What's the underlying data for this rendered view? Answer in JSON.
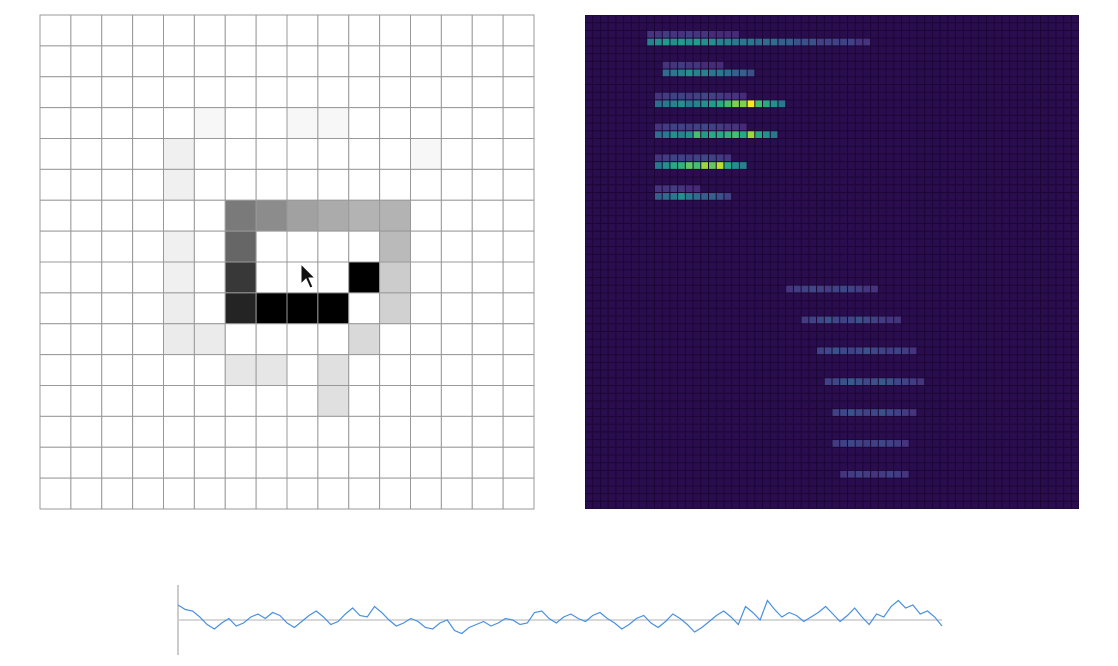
{
  "drawing": [
    [
      0,
      0,
      0,
      0,
      0,
      0,
      0,
      0,
      0,
      0,
      0,
      0,
      0,
      0,
      0,
      0
    ],
    [
      0,
      0,
      0,
      0,
      0,
      0,
      0,
      0,
      0,
      0,
      0,
      0,
      0,
      0,
      0,
      0
    ],
    [
      0,
      0,
      0,
      0,
      0,
      0,
      0,
      0,
      0,
      0,
      0,
      0,
      0,
      0,
      0,
      0
    ],
    [
      0,
      0,
      0,
      0,
      0,
      0.03,
      0,
      0,
      0.03,
      0.03,
      0,
      0,
      0,
      0,
      0,
      0
    ],
    [
      0,
      0,
      0,
      0,
      0.06,
      0,
      0,
      0,
      0,
      0,
      0,
      0,
      0.03,
      0,
      0,
      0
    ],
    [
      0,
      0,
      0,
      0,
      0.06,
      0,
      0,
      0,
      0,
      0,
      0,
      0,
      0,
      0,
      0,
      0
    ],
    [
      0,
      0,
      0,
      0,
      0,
      0,
      0.52,
      0.45,
      0.37,
      0.33,
      0.3,
      0.3,
      0,
      0,
      0,
      0
    ],
    [
      0,
      0,
      0,
      0,
      0.06,
      0,
      0.6,
      0,
      0,
      0,
      0,
      0.27,
      0,
      0,
      0,
      0
    ],
    [
      0,
      0,
      0,
      0,
      0.06,
      0,
      0.78,
      0,
      0,
      0,
      1,
      0.2,
      0,
      0,
      0,
      0
    ],
    [
      0,
      0,
      0,
      0,
      0.07,
      0,
      0.86,
      1,
      1,
      1,
      0,
      0.18,
      0,
      0,
      0,
      0
    ],
    [
      0,
      0,
      0,
      0,
      0.08,
      0.08,
      0,
      0,
      0,
      0,
      0.15,
      0,
      0,
      0,
      0,
      0
    ],
    [
      0,
      0,
      0,
      0,
      0,
      0,
      0.1,
      0.1,
      0,
      0.12,
      0,
      0,
      0,
      0,
      0,
      0
    ],
    [
      0,
      0,
      0,
      0,
      0,
      0,
      0,
      0,
      0,
      0.12,
      0,
      0,
      0,
      0,
      0,
      0
    ],
    [
      0,
      0,
      0,
      0,
      0,
      0,
      0,
      0,
      0,
      0,
      0,
      0,
      0,
      0,
      0,
      0
    ],
    [
      0,
      0,
      0,
      0,
      0,
      0,
      0,
      0,
      0,
      0,
      0,
      0,
      0,
      0,
      0,
      0
    ],
    [
      0,
      0,
      0,
      0,
      0,
      0,
      0,
      0,
      0,
      0,
      0,
      0,
      0,
      0,
      0,
      0
    ]
  ],
  "heatmap": [
    {
      "row": 2,
      "start": 8,
      "values": [
        0.15,
        0.15,
        0.18,
        0.15,
        0.15,
        0.18,
        0.15,
        0.15,
        0.12,
        0.12,
        0.12,
        0.12
      ]
    },
    {
      "row": 3,
      "start": 8,
      "values": [
        0.45,
        0.5,
        0.55,
        0.5,
        0.55,
        0.5,
        0.55,
        0.5,
        0.5,
        0.45,
        0.45,
        0.4,
        0.4,
        0.4,
        0.35,
        0.35,
        0.35,
        0.3,
        0.3,
        0.25,
        0.25,
        0.25,
        0.2,
        0.2,
        0.2,
        0.2,
        0.2,
        0.15,
        0.15
      ]
    },
    {
      "row": 6,
      "start": 10,
      "values": [
        0.15,
        0.15,
        0.18,
        0.15,
        0.15,
        0.12,
        0.12,
        0.12
      ]
    },
    {
      "row": 7,
      "start": 10,
      "values": [
        0.35,
        0.4,
        0.45,
        0.5,
        0.45,
        0.45,
        0.4,
        0.4,
        0.35,
        0.3,
        0.3,
        0.25
      ]
    },
    {
      "row": 10,
      "start": 9,
      "values": [
        0.15,
        0.18,
        0.2,
        0.2,
        0.18,
        0.2,
        0.22,
        0.2,
        0.18,
        0.15,
        0.15,
        0.12
      ]
    },
    {
      "row": 11,
      "start": 9,
      "values": [
        0.35,
        0.4,
        0.45,
        0.5,
        0.4,
        0.45,
        0.5,
        0.55,
        0.6,
        0.7,
        0.8,
        0.8,
        1,
        0.7,
        0.6,
        0.5,
        0.4
      ]
    },
    {
      "row": 14,
      "start": 9,
      "values": [
        0.15,
        0.18,
        0.2,
        0.2,
        0.18,
        0.2,
        0.22,
        0.2,
        0.18,
        0.15,
        0.15,
        0.12
      ]
    },
    {
      "row": 15,
      "start": 9,
      "values": [
        0.35,
        0.4,
        0.5,
        0.45,
        0.5,
        0.7,
        0.55,
        0.6,
        0.6,
        0.65,
        0.7,
        0.6,
        0.85,
        0.6,
        0.5,
        0.4
      ]
    },
    {
      "row": 18,
      "start": 9,
      "values": [
        0.15,
        0.18,
        0.2,
        0.2,
        0.18,
        0.2,
        0.22,
        0.2,
        0.18,
        0.15
      ]
    },
    {
      "row": 19,
      "start": 9,
      "values": [
        0.4,
        0.5,
        0.6,
        0.65,
        0.75,
        0.7,
        0.85,
        0.75,
        0.9,
        0.6,
        0.5,
        0.45
      ]
    },
    {
      "row": 22,
      "start": 9,
      "values": [
        0.15,
        0.15,
        0.18,
        0.15,
        0.12,
        0.12
      ]
    },
    {
      "row": 23,
      "start": 9,
      "values": [
        0.3,
        0.35,
        0.4,
        0.5,
        0.4,
        0.35,
        0.3,
        0.3,
        0.25,
        0.2
      ]
    },
    {
      "row": 35,
      "start": 26,
      "values": [
        0.15,
        0.18,
        0.2,
        0.22,
        0.2,
        0.18,
        0.2,
        0.22,
        0.2,
        0.18,
        0.15,
        0.15
      ]
    },
    {
      "row": 39,
      "start": 28,
      "values": [
        0.18,
        0.2,
        0.22,
        0.25,
        0.22,
        0.2,
        0.22,
        0.25,
        0.22,
        0.2,
        0.18,
        0.15,
        0.15
      ]
    },
    {
      "row": 43,
      "start": 30,
      "values": [
        0.2,
        0.22,
        0.25,
        0.22,
        0.2,
        0.22,
        0.25,
        0.22,
        0.2,
        0.18,
        0.2,
        0.18,
        0.15
      ]
    },
    {
      "row": 47,
      "start": 31,
      "values": [
        0.2,
        0.22,
        0.25,
        0.28,
        0.25,
        0.22,
        0.25,
        0.28,
        0.25,
        0.22,
        0.2,
        0.18,
        0.15
      ]
    },
    {
      "row": 51,
      "start": 32,
      "values": [
        0.2,
        0.22,
        0.25,
        0.22,
        0.2,
        0.22,
        0.25,
        0.22,
        0.2,
        0.18,
        0.15
      ]
    },
    {
      "row": 55,
      "start": 32,
      "values": [
        0.18,
        0.2,
        0.22,
        0.2,
        0.18,
        0.2,
        0.22,
        0.2,
        0.18,
        0.15
      ]
    },
    {
      "row": 59,
      "start": 33,
      "values": [
        0.15,
        0.18,
        0.2,
        0.18,
        0.15,
        0.18,
        0.2,
        0.18,
        0.15
      ]
    }
  ],
  "waveform": [
    1,
    0.7,
    0.6,
    0.2,
    -0.3,
    -0.6,
    -0.2,
    0.1,
    -0.4,
    -0.2,
    0.2,
    0.4,
    0.1,
    0.5,
    0.3,
    -0.2,
    -0.5,
    -0.1,
    0.3,
    0.6,
    0.2,
    -0.3,
    -0.1,
    0.4,
    0.8,
    0.3,
    0.2,
    0.9,
    0.5,
    0,
    -0.4,
    -0.2,
    0.1,
    -0.1,
    -0.5,
    -0.6,
    -0.2,
    0,
    -0.7,
    -0.9,
    -0.5,
    -0.3,
    -0.1,
    -0.4,
    -0.2,
    0.1,
    0,
    -0.3,
    -0.2,
    0.5,
    0.6,
    0.1,
    -0.2,
    0.2,
    0.4,
    0.1,
    -0.1,
    0.3,
    0.5,
    0.1,
    -0.2,
    -0.6,
    -0.3,
    0.1,
    0.3,
    -0.2,
    -0.5,
    -0.1,
    0.4,
    0.1,
    -0.3,
    -0.8,
    -0.5,
    -0.1,
    0.3,
    0.6,
    0.2,
    -0.3,
    0.9,
    0.5,
    0,
    1.3,
    0.7,
    0.2,
    0.5,
    0.3,
    -0.1,
    0.2,
    0.5,
    0.9,
    0.4,
    -0.1,
    0.3,
    0.8,
    0.2,
    -0.3,
    0.4,
    0.2,
    0.9,
    1.3,
    0.8,
    1,
    0.4,
    0.6,
    0.2,
    -0.4
  ]
}
